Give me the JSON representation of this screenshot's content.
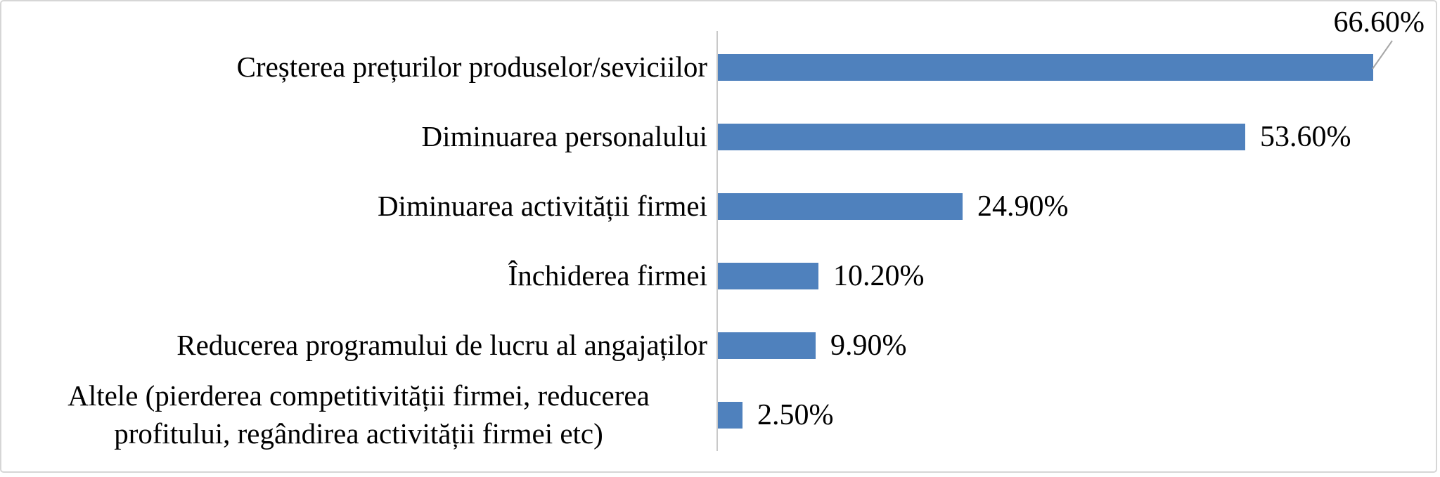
{
  "chart_data": {
    "type": "bar",
    "orientation": "horizontal",
    "title": "",
    "xlabel": "",
    "ylabel": "",
    "grid": false,
    "legend": "none",
    "categories": [
      "Creșterea prețurilor produselor/seviciilor",
      "Diminuarea personalului",
      "Diminuarea activității firmei",
      "Închiderea firmei",
      "Reducerea programului de lucru al angajaților",
      "Altele (pierderea competitivității firmei, reducerea profitului, regândirea activității firmei etc)"
    ],
    "values": [
      66.6,
      53.6,
      24.9,
      10.2,
      9.9,
      2.5
    ],
    "value_labels": [
      "66.60%",
      "53.60%",
      "24.90%",
      "10.20%",
      "9.90%",
      "2.50%"
    ],
    "value_label_placement": "outside-end; first value shown as callout above bar with leader line",
    "xlim": [
      0,
      70
    ],
    "bar_color": "#4f81bd",
    "axis_line_color": "#c9c9c9",
    "leader_line_color": "#a6a6a6",
    "frame_border_color": "#d6d6d6",
    "background_color": "#ffffff",
    "text_color": "#000000"
  }
}
